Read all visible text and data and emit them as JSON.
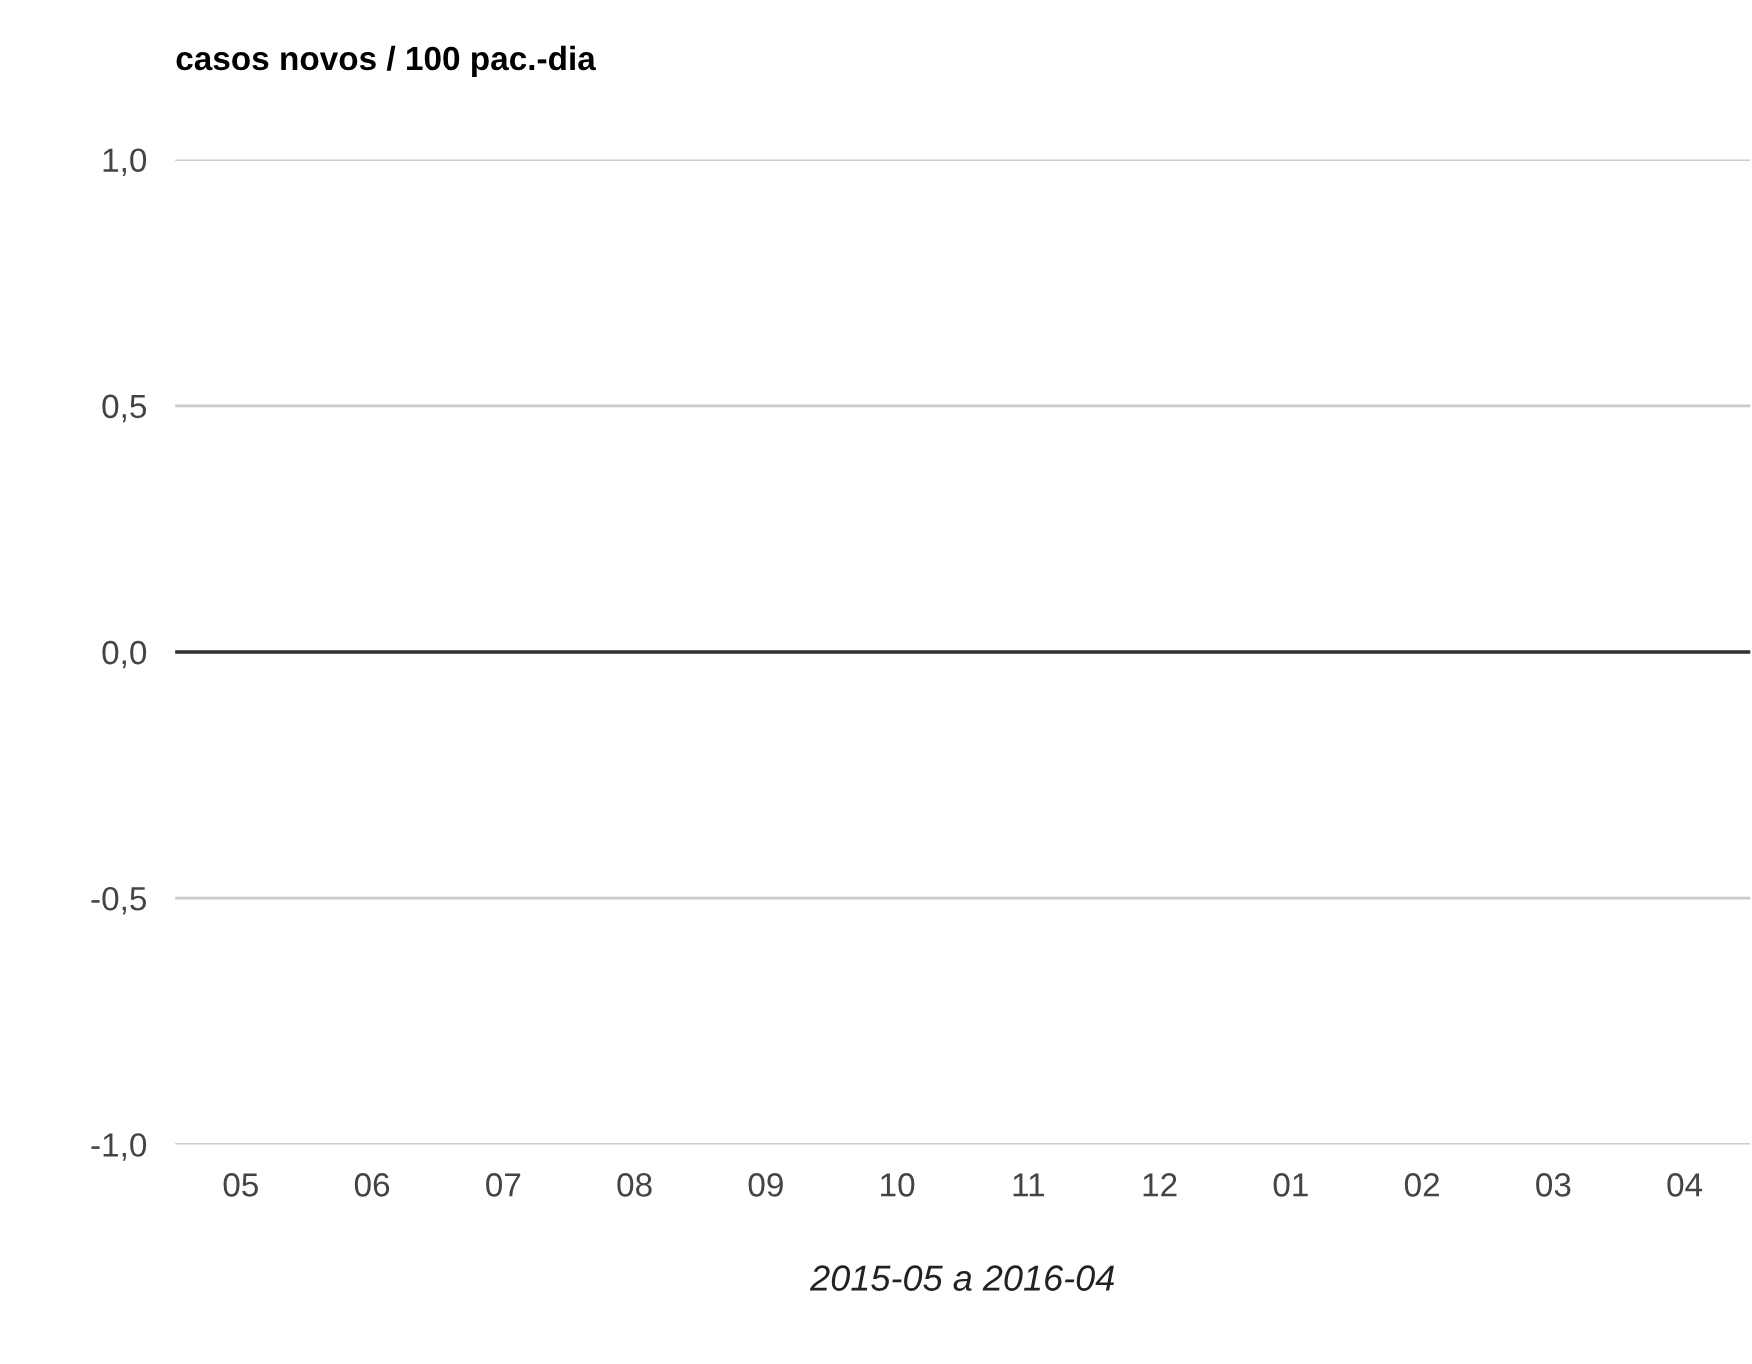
{
  "chart_data": {
    "type": "bar",
    "title": "casos novos / 100 pac.-dia",
    "xlabel": "2015-05 a 2016-04",
    "categories": [
      "05",
      "06",
      "07",
      "08",
      "09",
      "10",
      "11",
      "12",
      "01",
      "02",
      "03",
      "04"
    ],
    "values": [
      0,
      0,
      0,
      0,
      0,
      0,
      0,
      0,
      0,
      0,
      0,
      0
    ],
    "ylim": [
      -1,
      1
    ],
    "yticks": [
      {
        "value": -1,
        "label": "-1,0"
      },
      {
        "value": -0.5,
        "label": "-0,5"
      },
      {
        "value": 0,
        "label": "0,0"
      },
      {
        "value": 0.5,
        "label": "0,5"
      },
      {
        "value": 1,
        "label": "1,0"
      }
    ],
    "ref_lines": [
      {
        "axis": "y",
        "value": 0,
        "color": "#333333"
      }
    ],
    "grid": "y",
    "legend": false
  }
}
